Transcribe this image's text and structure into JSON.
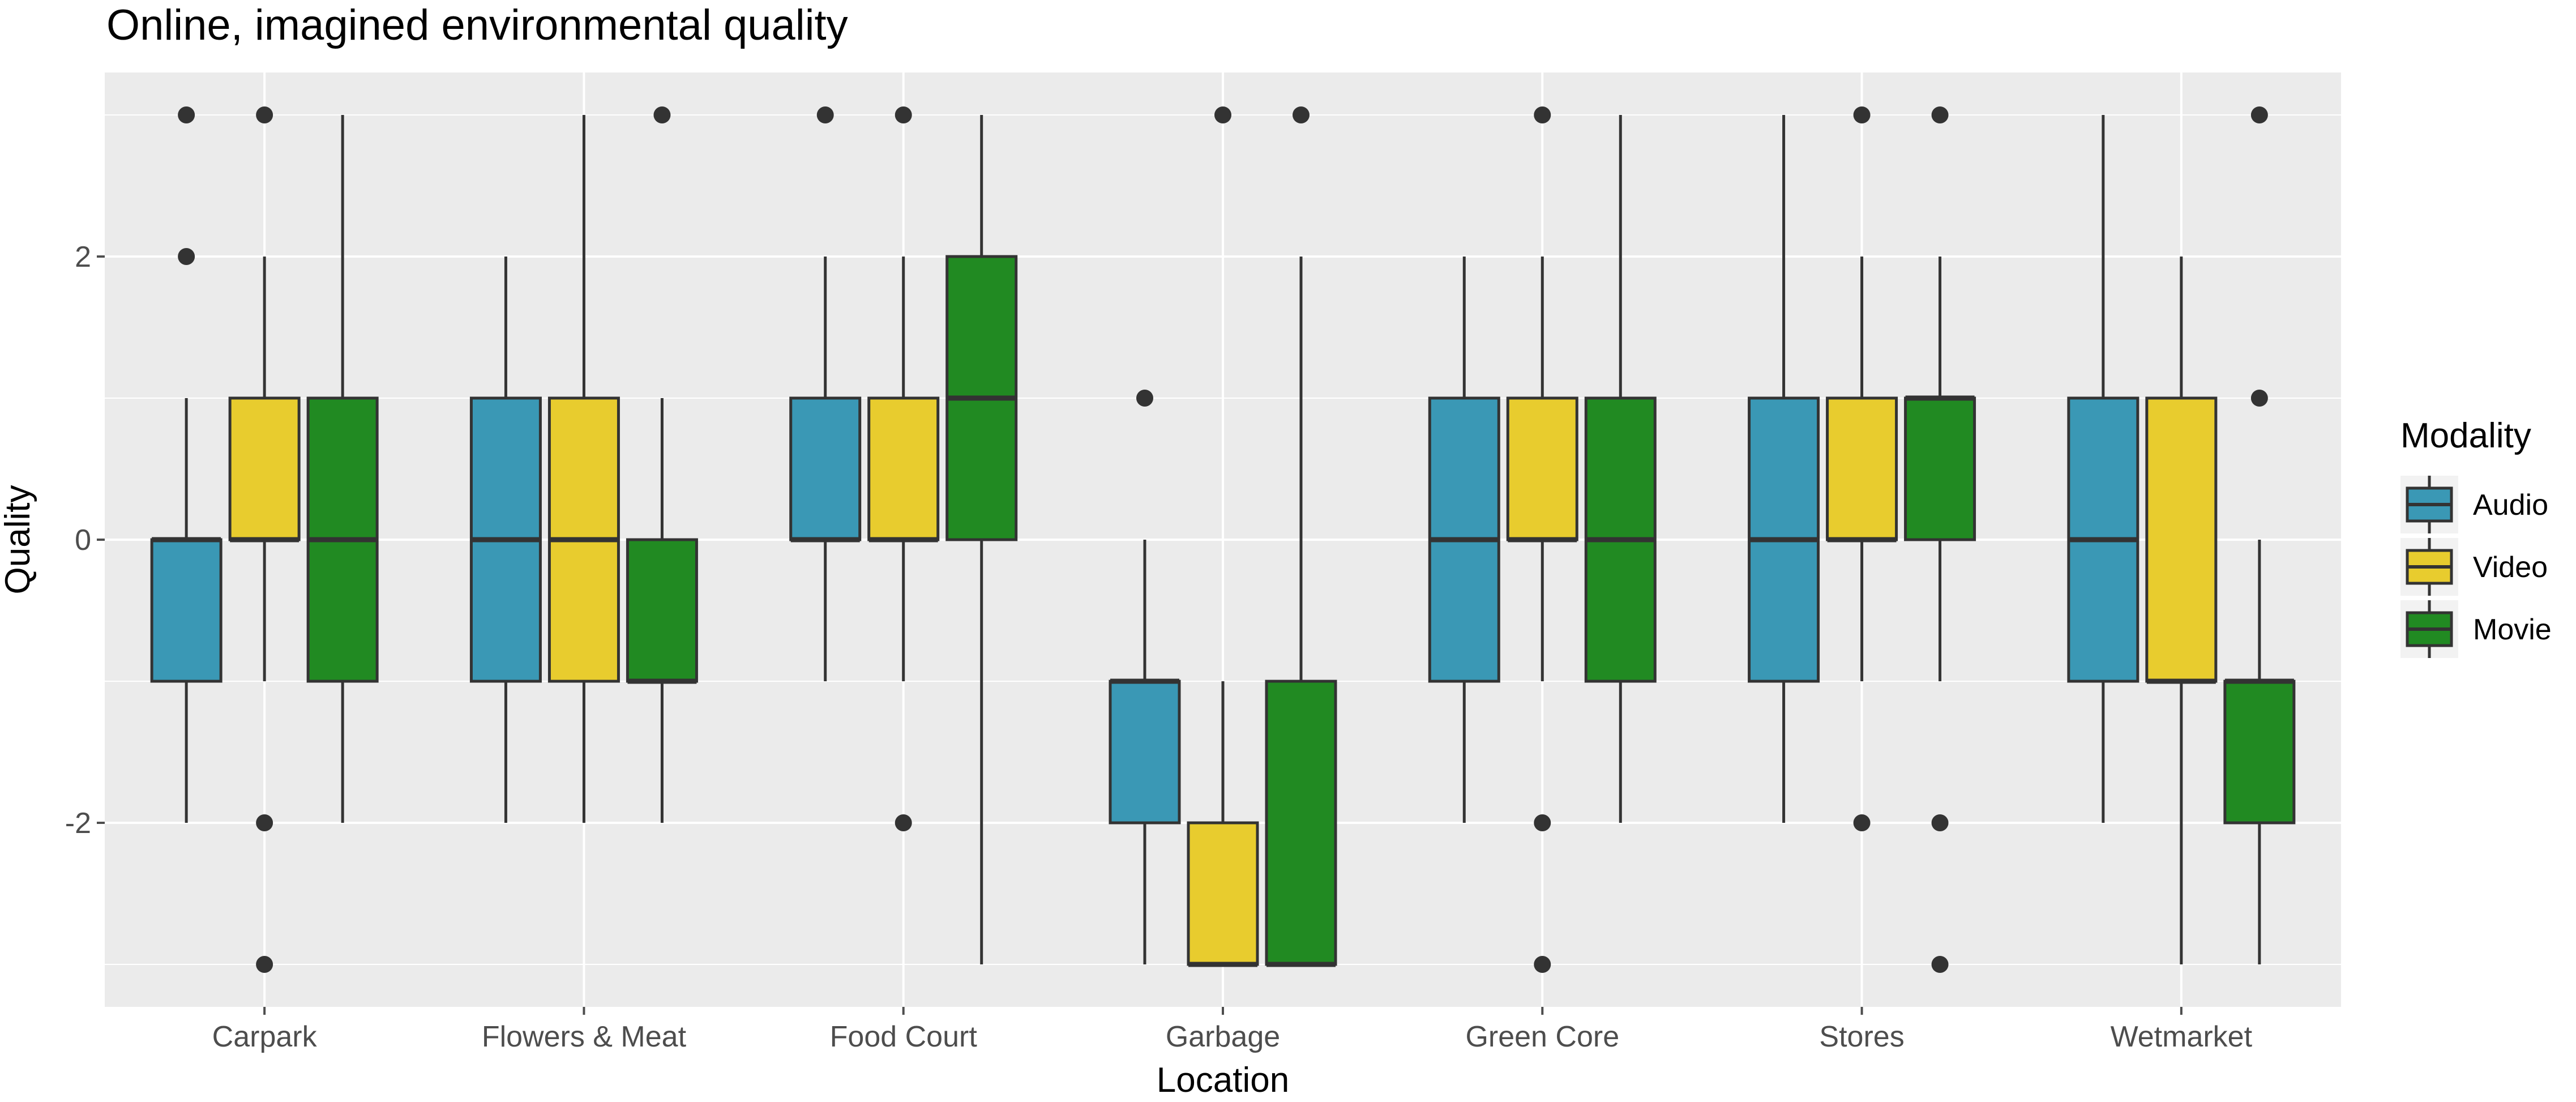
{
  "chart_data": {
    "type": "boxplot",
    "title": "Online, imagined environmental quality",
    "xlabel": "Location",
    "ylabel": "Quality",
    "ylim": [
      -3.3,
      3.3
    ],
    "y_ticks": [
      -2,
      0,
      2
    ],
    "y_tick_labels": [
      "-2",
      "0",
      "2"
    ],
    "grid": true,
    "categories": [
      "Carpark",
      "Flowers & Meat",
      "Food Court",
      "Garbage",
      "Green Core",
      "Stores",
      "Wetmarket"
    ],
    "legend": {
      "title": "Modality",
      "position": "right",
      "entries": [
        "Audio",
        "Video",
        "Movie"
      ]
    },
    "series": [
      {
        "name": "Audio",
        "color": "#3a98b5",
        "boxes": [
          {
            "lower": -2,
            "q1": -1,
            "median": 0,
            "q3": 0,
            "upper": 1,
            "outliers": [
              2,
              3
            ]
          },
          {
            "lower": -2,
            "q1": -1,
            "median": 0,
            "q3": 1,
            "upper": 2,
            "outliers": []
          },
          {
            "lower": -1,
            "q1": 0,
            "median": 0,
            "q3": 1,
            "upper": 2,
            "outliers": [
              3
            ]
          },
          {
            "lower": -3,
            "q1": -2,
            "median": -1,
            "q3": -1,
            "upper": 0,
            "outliers": [
              1
            ]
          },
          {
            "lower": -2,
            "q1": -1,
            "median": 0,
            "q3": 1,
            "upper": 2,
            "outliers": []
          },
          {
            "lower": -2,
            "q1": -1,
            "median": 0,
            "q3": 1,
            "upper": 3,
            "outliers": []
          },
          {
            "lower": -2,
            "q1": -1,
            "median": 0,
            "q3": 1,
            "upper": 3,
            "outliers": []
          }
        ]
      },
      {
        "name": "Video",
        "color": "#e8cc2e",
        "boxes": [
          {
            "lower": -1,
            "q1": 0,
            "median": 0,
            "q3": 1,
            "upper": 2,
            "outliers": [
              3,
              -2,
              -3
            ]
          },
          {
            "lower": -2,
            "q1": -1,
            "median": 0,
            "q3": 1,
            "upper": 3,
            "outliers": []
          },
          {
            "lower": -1,
            "q1": 0,
            "median": 0,
            "q3": 1,
            "upper": 2,
            "outliers": [
              3,
              -2
            ]
          },
          {
            "lower": -3,
            "q1": -3,
            "median": -3,
            "q3": -2,
            "upper": -1,
            "outliers": [
              3
            ]
          },
          {
            "lower": -1,
            "q1": 0,
            "median": 0,
            "q3": 1,
            "upper": 2,
            "outliers": [
              3,
              -2,
              -3
            ]
          },
          {
            "lower": -1,
            "q1": 0,
            "median": 0,
            "q3": 1,
            "upper": 2,
            "outliers": [
              3,
              -2
            ]
          },
          {
            "lower": -3,
            "q1": -1,
            "median": -1,
            "q3": 1,
            "upper": 2,
            "outliers": []
          }
        ]
      },
      {
        "name": "Movie",
        "color": "#218a22",
        "boxes": [
          {
            "lower": -2,
            "q1": -1,
            "median": 0,
            "q3": 1,
            "upper": 3,
            "outliers": []
          },
          {
            "lower": -2,
            "q1": -1,
            "median": -1,
            "q3": 0,
            "upper": 1,
            "outliers": [
              3
            ]
          },
          {
            "lower": -3,
            "q1": 0,
            "median": 1,
            "q3": 2,
            "upper": 3,
            "outliers": []
          },
          {
            "lower": -3,
            "q1": -3,
            "median": -3,
            "q3": -1,
            "upper": 2,
            "outliers": [
              3
            ]
          },
          {
            "lower": -2,
            "q1": -1,
            "median": 0,
            "q3": 1,
            "upper": 3,
            "outliers": []
          },
          {
            "lower": -1,
            "q1": 0,
            "median": 1,
            "q3": 1,
            "upper": 2,
            "outliers": [
              3,
              -2,
              -3
            ]
          },
          {
            "lower": -3,
            "q1": -2,
            "median": -1,
            "q3": -1,
            "upper": 0,
            "outliers": [
              3,
              1
            ]
          }
        ]
      }
    ]
  },
  "colors": {
    "panel_background": "#ebebeb",
    "grid_major": "#ffffff",
    "box_outline": "#333333",
    "axis_text": "#4d4d4d",
    "title_text": "#000000"
  }
}
